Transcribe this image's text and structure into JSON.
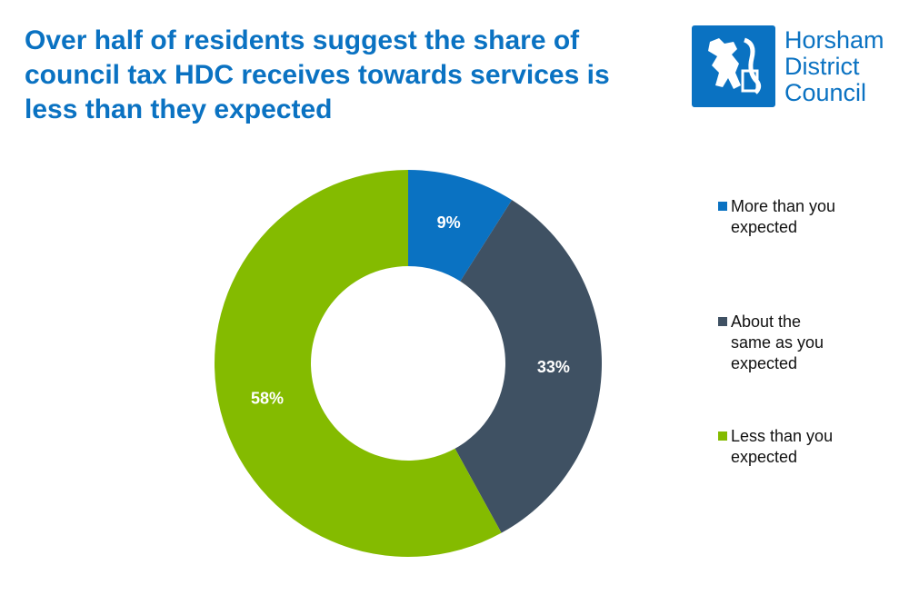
{
  "chart_data": {
    "type": "donut",
    "title": "Over half of residents suggest the share of council tax HDC receives towards services is less than they expected",
    "logo_text": [
      "Horsham",
      "District",
      "Council"
    ],
    "categories": [
      "More than you expected",
      "About the same as you expected",
      "Less than you expected"
    ],
    "values": [
      9,
      33,
      58
    ],
    "value_labels": [
      "9%",
      "33%",
      "58%"
    ],
    "colors": [
      "#0a72c2",
      "#3f5163",
      "#84bb00"
    ],
    "legend": "right"
  }
}
